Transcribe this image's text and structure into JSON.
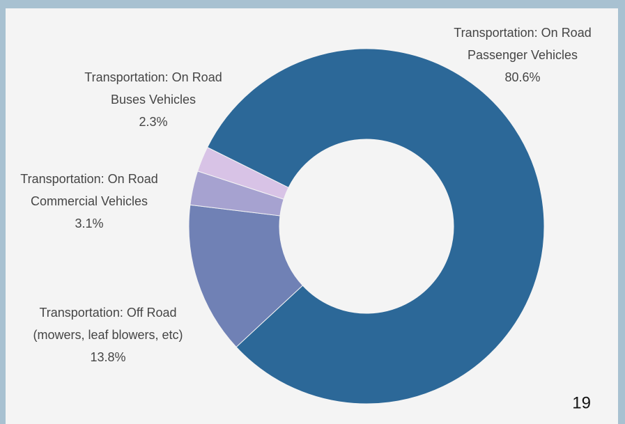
{
  "chart_data": {
    "type": "donut",
    "categories": [
      "Transportation: On Road Passenger Vehicles",
      "Transportation: Off Road (mowers, leaf blowers, etc)",
      "Transportation: On Road Commercial Vehicles",
      "Transportation: On Road Buses Vehicles"
    ],
    "values": [
      80.6,
      13.8,
      3.1,
      2.3
    ],
    "value_labels": [
      "80.6%",
      "13.8%",
      "3.1%",
      "2.3%"
    ],
    "colors": [
      "#2c6898",
      "#7081b5",
      "#a6a2d0",
      "#d8c3e6"
    ]
  },
  "page_number": "19"
}
